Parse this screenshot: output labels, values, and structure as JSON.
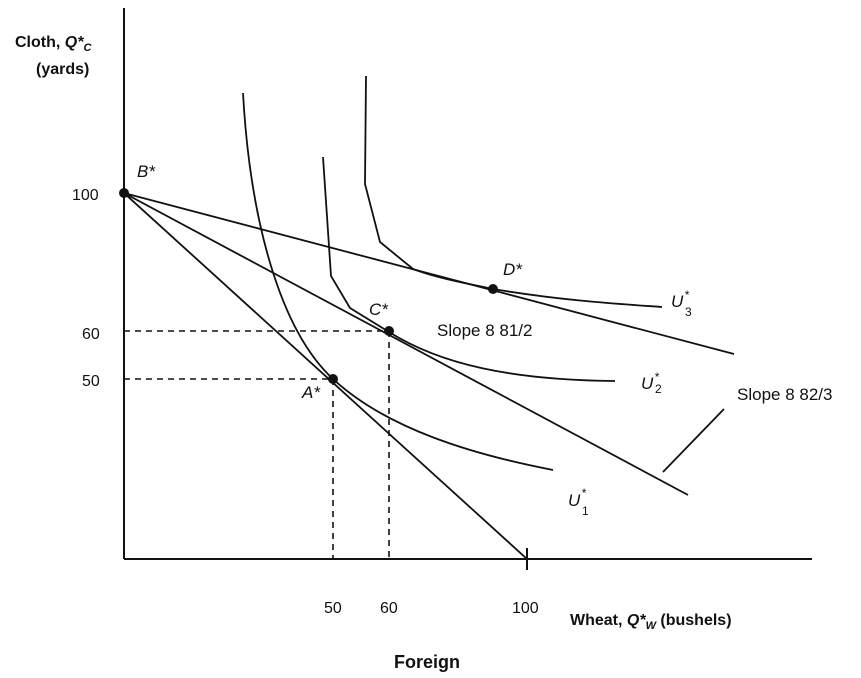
{
  "axes": {
    "y_title_line1_prefix": "Cloth, ",
    "y_title_line1_symbol": "Q*",
    "y_title_line1_sub": "C",
    "y_title_line2": "(yards)",
    "x_title_prefix": "Wheat, ",
    "x_title_symbol": "Q*",
    "x_title_sub": "W",
    "x_title_suffix": " (bushels)"
  },
  "ticks": {
    "y_100": "100",
    "y_60": "60",
    "y_50": "50",
    "x_50": "50",
    "x_60": "60",
    "x_100": "100"
  },
  "points": {
    "b_star": "B*",
    "a_star": "A*",
    "c_star": "C*",
    "d_star": "D*"
  },
  "curves": {
    "u1": "U",
    "u1_sup": "*",
    "u1_sub": "1",
    "u2": "U",
    "u2_sup": "*",
    "u2_sub": "2",
    "u3": "U",
    "u3_sup": "*",
    "u3_sub": "3"
  },
  "slopes": {
    "half": "Slope 8 81/2",
    "two_thirds": "Slope 8 82/3"
  },
  "footer": {
    "title": "Foreign"
  }
}
